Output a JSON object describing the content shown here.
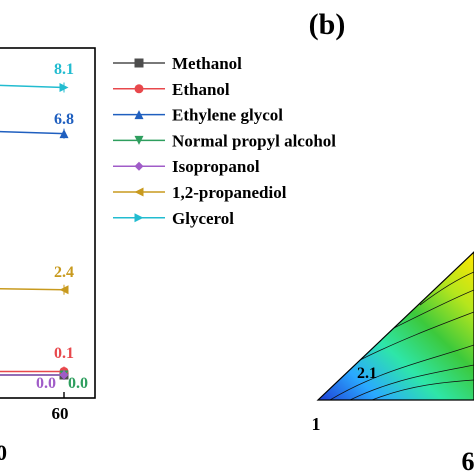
{
  "panel_label": "(b)",
  "contour_labels": [
    "2.1",
    "1"
  ],
  "partial_axis_labels": [
    "0",
    "6"
  ],
  "chart_data": [
    {
      "type": "line",
      "x": [
        0,
        60
      ],
      "xticks": [
        "60"
      ],
      "series": [
        {
          "name": "Methanol",
          "color": "#4d4d4d",
          "marker": "square",
          "end_label": "",
          "values": [
            0.0,
            0.0
          ]
        },
        {
          "name": "Ethanol",
          "color": "#e8484c",
          "marker": "circle",
          "end_label": "0.1",
          "values": [
            0.1,
            0.1
          ]
        },
        {
          "name": "Ethylene glycol",
          "color": "#1f5fbf",
          "marker": "triangle-up",
          "end_label": "6.8",
          "values": [
            7.0,
            6.8
          ]
        },
        {
          "name": "Normal propyl alcohol",
          "color": "#2e9e5e",
          "marker": "triangle-down",
          "end_label": "0.0",
          "values": [
            0.0,
            0.0
          ]
        },
        {
          "name": "Isopropanol",
          "color": "#a05cc8",
          "marker": "diamond",
          "end_label": "0.0",
          "values": [
            0.0,
            0.0
          ]
        },
        {
          "name": "1,2-propanediol",
          "color": "#c89a1e",
          "marker": "triangle-left",
          "end_label": "2.4",
          "values": [
            2.5,
            2.4
          ]
        },
        {
          "name": "Glycerol",
          "color": "#22bcd0",
          "marker": "triangle-right",
          "end_label": "8.1",
          "values": [
            8.3,
            8.1
          ]
        }
      ]
    },
    {
      "type": "heatmap",
      "shape": "ternary",
      "colormap": [
        "#1f3fd6",
        "#2aa9ff",
        "#2ee6a8",
        "#3cc93c",
        "#b5e61d",
        "#ffe600"
      ],
      "contour_labels": [
        "2.1"
      ],
      "corner_label": "1"
    }
  ]
}
